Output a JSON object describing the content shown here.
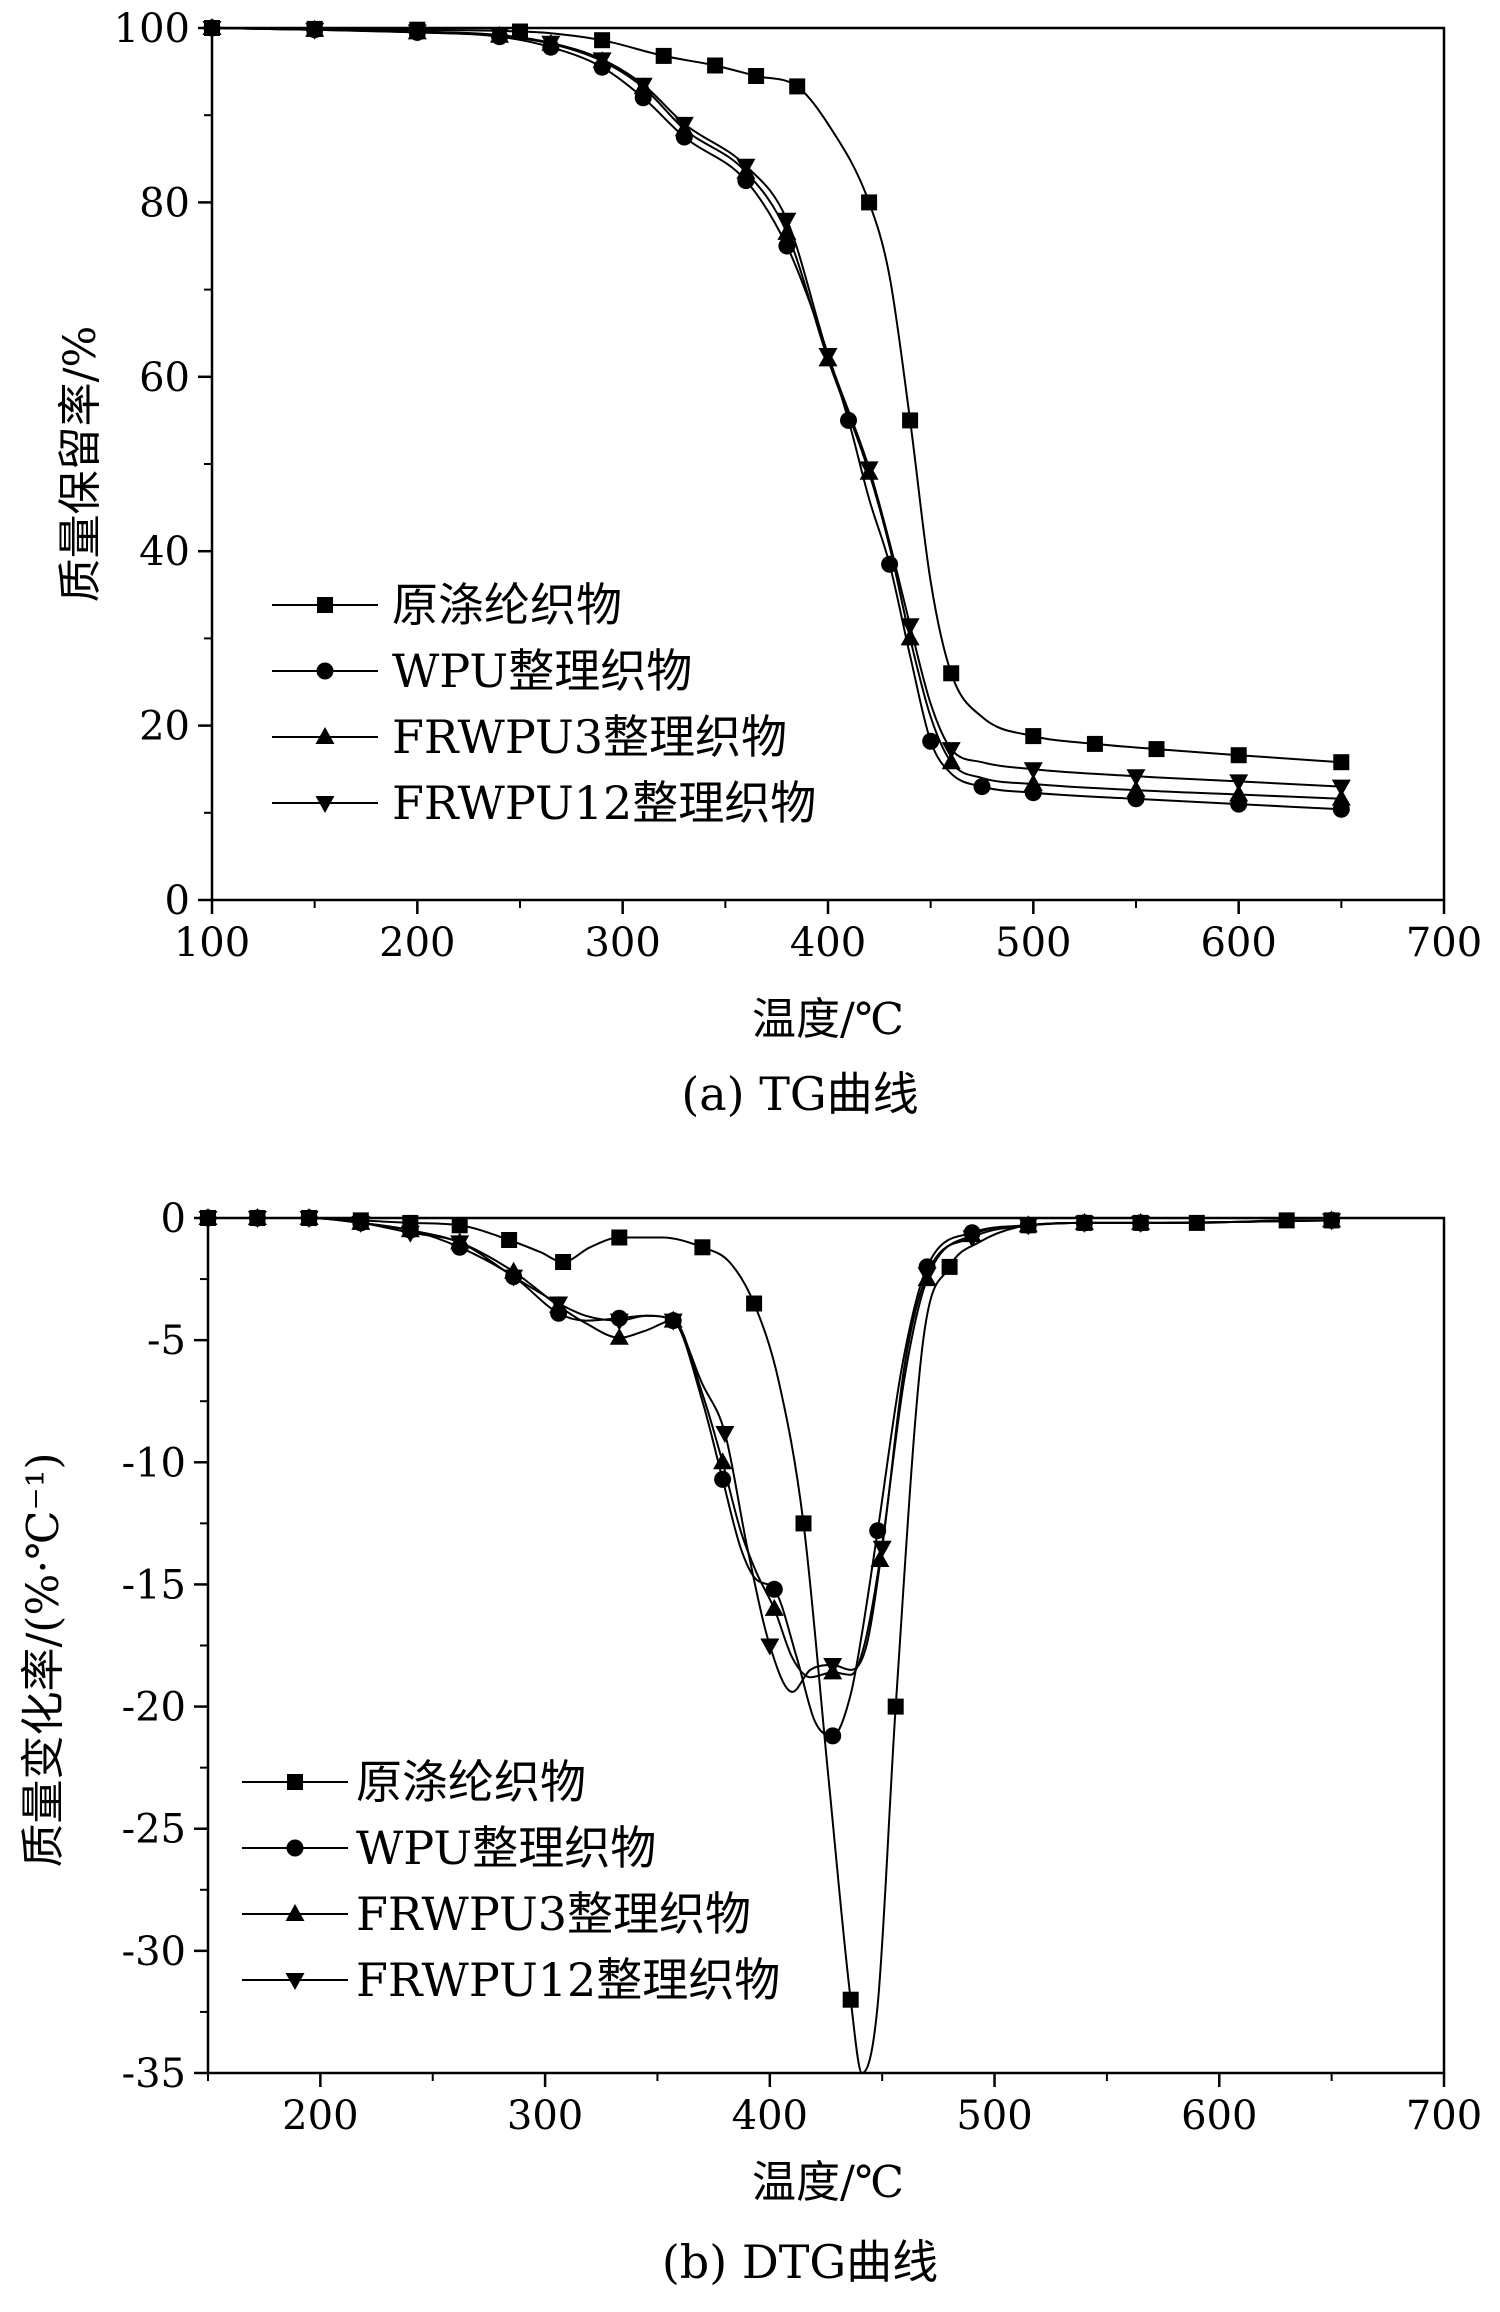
{
  "chart_data": [
    {
      "type": "line",
      "caption": "(a) TG曲线",
      "xlabel": "温度/℃",
      "ylabel": "质量保留率/%",
      "xlim": [
        100,
        700
      ],
      "ylim": [
        0,
        100
      ],
      "xticks": [
        "100",
        "200",
        "300",
        "400",
        "500",
        "600",
        "700"
      ],
      "yticks": [
        "0",
        "20",
        "40",
        "60",
        "80",
        "100"
      ],
      "legend_position": "bottom-left",
      "series": [
        {
          "name": "原涤纶织物",
          "marker": "square",
          "x": [
            100,
            150,
            200,
            250,
            265,
            290,
            320,
            345,
            365,
            385,
            400,
            420,
            430,
            440,
            450,
            460,
            475,
            500,
            530,
            560,
            600,
            650
          ],
          "y": [
            100,
            99.9,
            99.8,
            99.6,
            99.4,
            98.6,
            96.8,
            95.7,
            94.5,
            93.3,
            89,
            80,
            71.5,
            55,
            36.5,
            26,
            21,
            18.8,
            17.9,
            17.3,
            16.6,
            15.8
          ]
        },
        {
          "name": "WPU整理织物",
          "marker": "circle",
          "x": [
            100,
            150,
            200,
            240,
            265,
            290,
            310,
            330,
            360,
            380,
            395,
            410,
            420,
            430,
            440,
            450,
            460,
            475,
            500,
            550,
            600,
            650
          ],
          "y": [
            100,
            99.8,
            99.5,
            99,
            97.8,
            95.5,
            92,
            87.5,
            82.5,
            75,
            66,
            55,
            46,
            38.5,
            28,
            18.2,
            14.5,
            13,
            12.3,
            11.6,
            11,
            10.4
          ]
        },
        {
          "name": "FRWPU3整理织物",
          "marker": "triangle-up",
          "x": [
            100,
            150,
            200,
            240,
            265,
            290,
            310,
            330,
            360,
            380,
            400,
            420,
            430,
            440,
            450,
            460,
            475,
            500,
            550,
            600,
            650
          ],
          "y": [
            100,
            99.8,
            99.5,
            99.1,
            98.2,
            96.2,
            93.2,
            88.4,
            83.5,
            76.5,
            62,
            49,
            40.5,
            30,
            21,
            15.8,
            14,
            13.3,
            12.6,
            12.1,
            11.6
          ]
        },
        {
          "name": "FRWPU12整理织物",
          "marker": "triangle-down",
          "x": [
            100,
            150,
            200,
            240,
            265,
            290,
            310,
            330,
            360,
            380,
            400,
            420,
            430,
            440,
            450,
            460,
            475,
            500,
            550,
            600,
            650
          ],
          "y": [
            100,
            99.8,
            99.6,
            99.2,
            98.3,
            96.4,
            93.5,
            89,
            84.2,
            78,
            62.5,
            49.5,
            41,
            31.5,
            22.5,
            17.3,
            15.8,
            15,
            14.2,
            13.6,
            13
          ]
        }
      ]
    },
    {
      "type": "line",
      "caption": "(b) DTG曲线",
      "xlabel": "温度/℃",
      "ylabel": "质量变化率/(%·℃⁻¹)",
      "xlim": [
        150,
        700
      ],
      "ylim": [
        -35,
        0
      ],
      "xticks": [
        "200",
        "300",
        "400",
        "500",
        "600",
        "700"
      ],
      "yticks": [
        "0",
        "-5",
        "-10",
        "-15",
        "-20",
        "-25",
        "-30",
        "-35"
      ],
      "legend_position": "bottom-left",
      "series": [
        {
          "name": "原涤纶织物",
          "marker": "square",
          "x": [
            150,
            172,
            195,
            218,
            240,
            262,
            284,
            298,
            308,
            320,
            333,
            352,
            370,
            382,
            393,
            404,
            415,
            426,
            436,
            441,
            448,
            456,
            468,
            480,
            493,
            515,
            540,
            565,
            590,
            630,
            650
          ],
          "y": [
            0,
            0,
            0,
            -0.1,
            -0.2,
            -0.3,
            -0.9,
            -1.4,
            -1.8,
            -1.2,
            -0.8,
            -0.8,
            -1.2,
            -1.8,
            -3.5,
            -6.7,
            -12.5,
            -22.8,
            -32,
            -35,
            -32.2,
            -20,
            -5.2,
            -2,
            -1,
            -0.3,
            -0.2,
            -0.2,
            -0.2,
            -0.1,
            -0.1
          ]
        },
        {
          "name": "WPU整理织物",
          "marker": "circle",
          "x": [
            150,
            172,
            195,
            218,
            240,
            262,
            286,
            306,
            318,
            333,
            345,
            357,
            370,
            379,
            387,
            394,
            402,
            412,
            420,
            428,
            436,
            441,
            448,
            459,
            470,
            490,
            515,
            540,
            565,
            650
          ],
          "y": [
            0,
            0,
            0,
            -0.2,
            -0.5,
            -1.2,
            -2.4,
            -3.9,
            -4.2,
            -4.1,
            -4.0,
            -4.2,
            -7.5,
            -10.7,
            -13.5,
            -14.8,
            -15.2,
            -18,
            -20.6,
            -21.2,
            -19.5,
            -17,
            -12.8,
            -6,
            -2,
            -0.6,
            -0.3,
            -0.2,
            -0.2,
            -0.1
          ]
        },
        {
          "name": "FRWPU3整理织物",
          "marker": "triangle-up",
          "x": [
            150,
            172,
            195,
            218,
            240,
            262,
            286,
            306,
            318,
            333,
            345,
            357,
            370,
            379,
            387,
            394,
            402,
            410,
            418,
            428,
            436,
            442,
            449,
            460,
            470,
            490,
            515,
            540,
            565,
            650
          ],
          "y": [
            0,
            0,
            0,
            -0.2,
            -0.5,
            -1.0,
            -2.2,
            -3.6,
            -4.3,
            -4.9,
            -4.6,
            -4.2,
            -7.2,
            -10,
            -12.8,
            -14.5,
            -16,
            -18,
            -18.8,
            -18.6,
            -18.7,
            -17.5,
            -14,
            -6.5,
            -2.5,
            -0.7,
            -0.3,
            -0.2,
            -0.2,
            -0.1
          ]
        },
        {
          "name": "FRWPU12整理织物",
          "marker": "triangle-down",
          "x": [
            150,
            172,
            195,
            218,
            240,
            262,
            286,
            306,
            318,
            333,
            345,
            357,
            370,
            380,
            390,
            400,
            410,
            418,
            428,
            436,
            443,
            450,
            460,
            470,
            490,
            515,
            540,
            565,
            650
          ],
          "y": [
            0,
            0,
            0,
            -0.2,
            -0.6,
            -1.0,
            -2.4,
            -3.5,
            -4.0,
            -4.2,
            -4.0,
            -4.2,
            -6.8,
            -8.8,
            -13.5,
            -17.5,
            -19.4,
            -18.5,
            -18.3,
            -18.5,
            -17.5,
            -13.5,
            -6.0,
            -2.3,
            -0.8,
            -0.3,
            -0.2,
            -0.2,
            -0.1
          ]
        }
      ]
    }
  ]
}
